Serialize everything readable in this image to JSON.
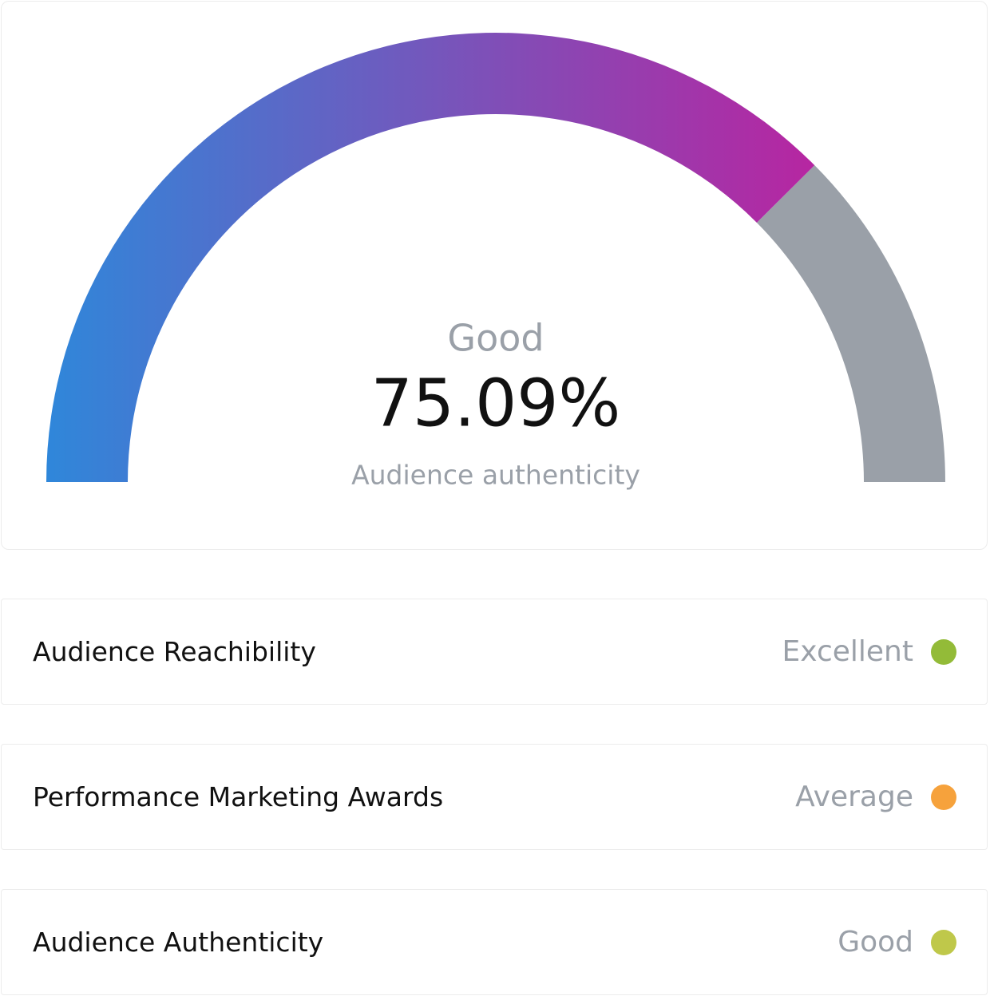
{
  "chart_data": {
    "type": "gauge",
    "status": "Good",
    "value": 75.09,
    "value_label": "75.09%",
    "caption": "Audience authenticity",
    "ylim": [
      0,
      100
    ],
    "colors": [
      "#2f87da",
      "#7b52b9",
      "#c41c9c"
    ],
    "rest_color": "#9aa0a8"
  },
  "metrics": [
    {
      "name": "Audience Reachibility",
      "status": "Excellent",
      "color": "#93bb38"
    },
    {
      "name": "Performance Marketing Awards",
      "status": "Average",
      "color": "#f6a23c"
    },
    {
      "name": "Audience Authenticity",
      "status": "Good",
      "color": "#bfc84a"
    }
  ]
}
